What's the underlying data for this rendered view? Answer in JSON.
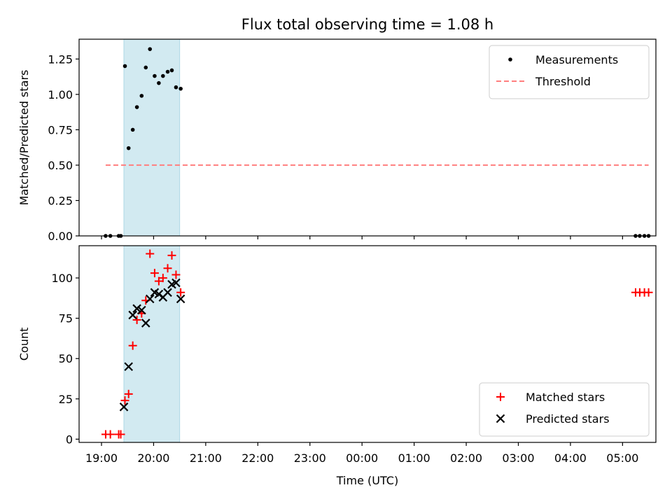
{
  "title": "Flux total observing time = 1.08 h",
  "colors": {
    "measurements": "#000000",
    "threshold": "#ff7f7f",
    "matched": "#ff0000",
    "predicted": "#000000",
    "span": "#add8e6"
  },
  "chart_data": [
    {
      "type": "scatter",
      "ylabel": "Matched/Predicted stars",
      "ylim": [
        0,
        1.39
      ],
      "xlim": [
        18.57,
        29.64
      ],
      "yticks": [
        0.0,
        0.25,
        0.5,
        0.75,
        1.0,
        1.25
      ],
      "ytick_labels": [
        "0.00",
        "0.25",
        "0.50",
        "0.75",
        "1.00",
        "1.25"
      ],
      "highlight_span": [
        19.43,
        20.5
      ],
      "legend": {
        "position": "upper right",
        "entries": [
          "Measurements",
          "Threshold"
        ]
      },
      "series": [
        {
          "name": "Measurements",
          "marker": "dot",
          "x": [
            19.08,
            19.17,
            19.33,
            19.37,
            19.45,
            19.52,
            19.6,
            19.68,
            19.77,
            19.85,
            19.93,
            20.02,
            20.1,
            20.18,
            20.27,
            20.35,
            20.43,
            20.52,
            29.25,
            29.33,
            29.42,
            29.5
          ],
          "y": [
            0.0,
            0.0,
            0.0,
            0.0,
            1.2,
            0.62,
            0.75,
            0.91,
            0.99,
            1.19,
            1.32,
            1.13,
            1.08,
            1.13,
            1.16,
            1.17,
            1.05,
            1.04,
            0.0,
            0.0,
            0.0,
            0.0
          ]
        },
        {
          "name": "Threshold",
          "marker": "dashed-line",
          "x": [
            19.08,
            29.5
          ],
          "y": [
            0.5,
            0.5
          ]
        }
      ]
    },
    {
      "type": "scatter",
      "ylabel": "Count",
      "xlabel": "Time (UTC)",
      "ylim": [
        -2,
        120
      ],
      "xlim": [
        18.57,
        29.64
      ],
      "yticks": [
        0,
        25,
        50,
        75,
        100
      ],
      "ytick_labels": [
        "0",
        "25",
        "50",
        "75",
        "100"
      ],
      "xticks": [
        19,
        20,
        21,
        22,
        23,
        24,
        25,
        26,
        27,
        28,
        29
      ],
      "xtick_labels": [
        "19:00",
        "20:00",
        "21:00",
        "22:00",
        "23:00",
        "00:00",
        "01:00",
        "02:00",
        "03:00",
        "04:00",
        "05:00"
      ],
      "highlight_span": [
        19.43,
        20.5
      ],
      "legend": {
        "position": "lower right",
        "entries": [
          "Matched stars",
          "Predicted stars"
        ]
      },
      "series": [
        {
          "name": "Matched stars",
          "marker": "plus",
          "x": [
            19.08,
            19.17,
            19.33,
            19.37,
            19.45,
            19.52,
            19.6,
            19.68,
            19.77,
            19.85,
            19.93,
            20.02,
            20.1,
            20.18,
            20.27,
            20.35,
            20.43,
            20.52,
            29.25,
            29.33,
            29.42,
            29.5
          ],
          "y": [
            3,
            3,
            3,
            3,
            24,
            28,
            58,
            74,
            78,
            86,
            115,
            103,
            98,
            100,
            106,
            114,
            102,
            91,
            91,
            91,
            91,
            91
          ]
        },
        {
          "name": "Predicted stars",
          "marker": "x",
          "x": [
            19.43,
            19.52,
            19.6,
            19.68,
            19.77,
            19.85,
            19.93,
            20.02,
            20.1,
            20.18,
            20.27,
            20.35,
            20.43,
            20.52
          ],
          "y": [
            20,
            45,
            77,
            81,
            80,
            72,
            87,
            91,
            90,
            88,
            91,
            96,
            97,
            87
          ]
        }
      ]
    }
  ]
}
